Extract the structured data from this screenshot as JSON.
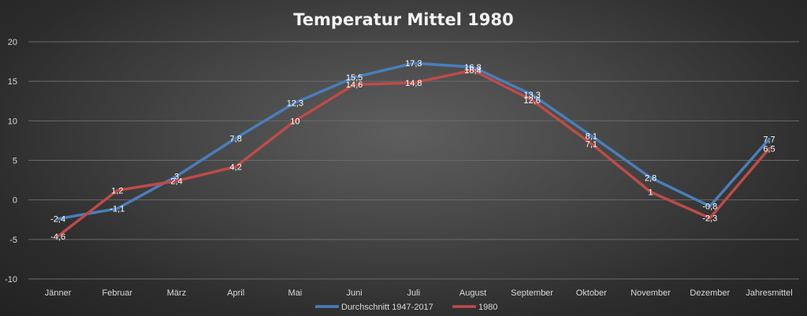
{
  "chart_data": {
    "type": "line",
    "title": "Temperatur Mittel 1980",
    "categories": [
      "Jänner",
      "Februar",
      "März",
      "April",
      "Mai",
      "Juni",
      "Juli",
      "August",
      "September",
      "Oktober",
      "November",
      "Dezember",
      "Jahresmittel"
    ],
    "series": [
      {
        "name": "Durchschnitt 1947-2017",
        "color": "#4a7ebb",
        "values": [
          -2.4,
          -1.1,
          3,
          7.8,
          12.3,
          15.5,
          17.3,
          16.8,
          13.3,
          8.1,
          2.8,
          -0.8,
          7.7
        ],
        "labels": [
          "-2,4",
          "-1,1",
          "3",
          "7,8",
          "12,3",
          "15,5",
          "17,3",
          "16,8",
          "13,3",
          "8,1",
          "2,8",
          "-0,8",
          "7,7"
        ]
      },
      {
        "name": "1980",
        "color": "#be4b48",
        "values": [
          -4.6,
          1.2,
          2.4,
          4.2,
          10,
          14.6,
          14.8,
          16.4,
          12.6,
          7.1,
          1,
          -2.3,
          6.5
        ],
        "labels": [
          "-4,6",
          "1,2",
          "2,4",
          "4,2",
          "10",
          "14,6",
          "14,8",
          "16,4",
          "12,6",
          "7,1",
          "1",
          "-2,3",
          "6,5"
        ]
      }
    ],
    "ylim": [
      -10,
      20
    ],
    "yticks": [
      -10,
      -5,
      0,
      5,
      10,
      15,
      20
    ],
    "grid": true,
    "legend": "bottom"
  }
}
